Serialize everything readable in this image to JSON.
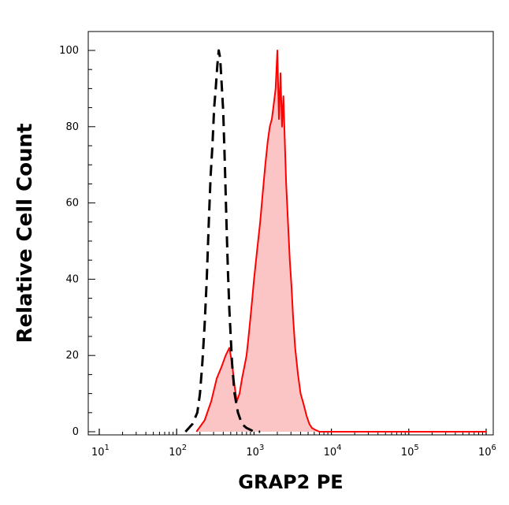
{
  "chart_data": {
    "type": "area",
    "title": "",
    "xlabel": "GRAP2 PE",
    "ylabel": "Relative Cell Count",
    "x_scale": "log",
    "xlim": [
      10,
      1000000
    ],
    "ylim": [
      0,
      100
    ],
    "grid": false,
    "x_ticks": [
      {
        "base": "10",
        "exp": "1",
        "value": 10
      },
      {
        "base": "10",
        "exp": "2",
        "value": 100
      },
      {
        "base": "10",
        "exp": "3",
        "value": 1000
      },
      {
        "base": "10",
        "exp": "4",
        "value": 10000
      },
      {
        "base": "10",
        "exp": "5",
        "value": 100000
      },
      {
        "base": "10",
        "exp": "6",
        "value": 1000000
      }
    ],
    "y_ticks": [
      {
        "label": "0",
        "value": 0
      },
      {
        "label": "20",
        "value": 20
      },
      {
        "label": "40",
        "value": 40
      },
      {
        "label": "60",
        "value": 60
      },
      {
        "label": "80",
        "value": 80
      },
      {
        "label": "100",
        "value": 100
      }
    ],
    "series": [
      {
        "style": "dashed",
        "color": "#000000",
        "fill": "none",
        "x": [
          130,
          160,
          185,
          200,
          215,
          230,
          245,
          260,
          275,
          290,
          305,
          320,
          335,
          350,
          365,
          380,
          400,
          420,
          440,
          460,
          480,
          500,
          520,
          560,
          620,
          700,
          800,
          900,
          1000,
          1200
        ],
        "y": [
          0,
          2,
          5,
          10,
          18,
          28,
          40,
          55,
          67,
          75,
          85,
          90,
          96,
          100,
          98,
          92,
          84,
          70,
          55,
          42,
          32,
          25,
          18,
          10,
          5,
          2,
          1,
          0.5,
          0,
          0
        ]
      },
      {
        "style": "solid",
        "color": "#ff0000",
        "fill": "#fcc5c5",
        "x": [
          180,
          230,
          280,
          330,
          380,
          430,
          480,
          520,
          560,
          600,
          650,
          700,
          750,
          800,
          850,
          900,
          950,
          1000,
          1100,
          1200,
          1300,
          1400,
          1500,
          1600,
          1700,
          1800,
          1900,
          2000,
          2100,
          2200,
          2300,
          2400,
          2500,
          2600,
          2750,
          2900,
          3050,
          3200,
          3400,
          3700,
          4000,
          4400,
          4800,
          5200,
          5600,
          6200,
          7000,
          9000,
          100000,
          1000000
        ],
        "y": [
          0,
          3,
          8,
          14,
          17,
          20,
          22,
          18,
          12,
          8,
          10,
          14,
          17,
          20,
          25,
          30,
          35,
          40,
          48,
          55,
          63,
          70,
          76,
          80,
          82,
          86,
          90,
          100,
          82,
          94,
          80,
          88,
          76,
          65,
          55,
          45,
          38,
          30,
          22,
          15,
          10,
          7,
          4,
          2,
          1,
          0.5,
          0,
          0,
          0,
          0
        ]
      }
    ]
  }
}
